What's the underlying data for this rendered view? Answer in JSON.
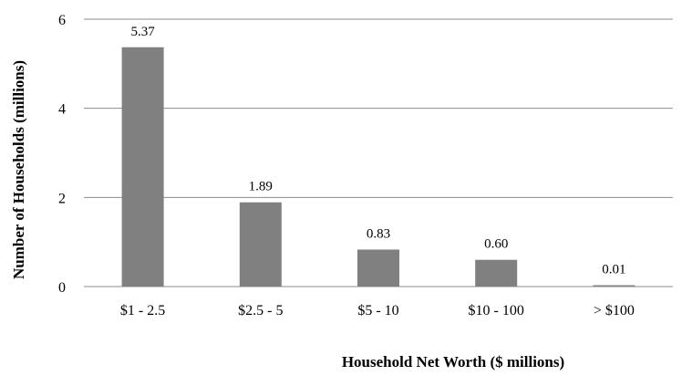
{
  "chart_data": {
    "type": "bar",
    "categories": [
      "$1 - 2.5",
      "$2.5 - 5",
      "$5 - 10",
      "$10 - 100",
      "> $100"
    ],
    "values": [
      5.37,
      1.89,
      0.83,
      0.6,
      0.01
    ],
    "data_labels": [
      "5.37",
      "1.89",
      "0.83",
      "0.60",
      "0.01"
    ],
    "xlabel": "Household Net Worth ($ millions)",
    "ylabel": "Number of Households (millions)",
    "ylim": [
      0,
      6
    ],
    "yticks": [
      "0",
      "2",
      "4",
      "6"
    ],
    "grid": true,
    "bar_color": "#808080",
    "grid_color": "#8c8c8c"
  }
}
